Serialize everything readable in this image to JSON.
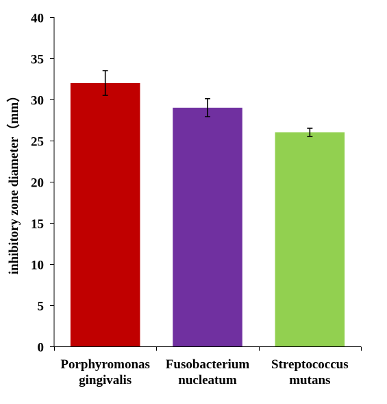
{
  "chart_data": {
    "type": "bar",
    "title": "",
    "xlabel": "",
    "ylabel": "inhibitory zone diameter（mm）",
    "ylim": [
      0,
      40
    ],
    "yticks": [
      "0",
      "5",
      "10",
      "15",
      "20",
      "25",
      "30",
      "35",
      "40"
    ],
    "grid": false,
    "categories": [
      [
        "Porphyromonas",
        "gingivalis"
      ],
      [
        "Fusobacterium",
        "nucleatum"
      ],
      [
        "Streptococcus",
        "mutans"
      ]
    ],
    "values": [
      32,
      29,
      26
    ],
    "errors": [
      1.5,
      1.1,
      0.5
    ],
    "colors": [
      "#c00000",
      "#7030a0",
      "#92d050"
    ]
  }
}
